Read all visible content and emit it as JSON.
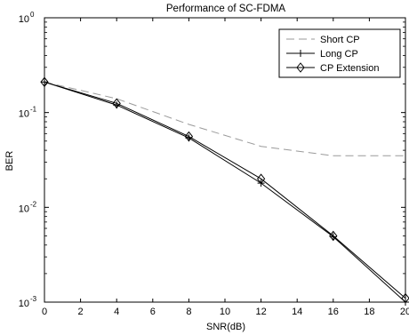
{
  "chart_data": {
    "type": "line",
    "title": "Performance of SC-FDMA",
    "xlabel": "SNR(dB)",
    "ylabel": "BER",
    "xlim": [
      0,
      20
    ],
    "ylim": [
      0.001,
      1
    ],
    "yscale": "log",
    "grid": false,
    "legend_position": "top-right",
    "x_ticks": [
      0,
      2,
      4,
      6,
      8,
      10,
      12,
      14,
      16,
      18,
      20
    ],
    "x_tick_labels": [
      "0",
      "2",
      "4",
      "6",
      "8",
      "10",
      "12",
      "14",
      "16",
      "18",
      "20"
    ],
    "y_ticks": [
      {
        "value": 1,
        "base": "10",
        "exp": "0"
      },
      {
        "value": 0.1,
        "base": "10",
        "exp": "-1"
      },
      {
        "value": 0.01,
        "base": "10",
        "exp": "-2"
      },
      {
        "value": 0.001,
        "base": "10",
        "exp": "-3"
      }
    ],
    "series": [
      {
        "name": "Short CP",
        "line_style": "dashed",
        "marker": "none",
        "color": "#9a9a9a",
        "x": [
          0,
          4,
          8,
          12,
          16,
          20
        ],
        "y": [
          0.21,
          0.14,
          0.075,
          0.044,
          0.035,
          0.035
        ]
      },
      {
        "name": "Long CP",
        "line_style": "solid",
        "marker": "plus",
        "color": "#000000",
        "x": [
          0,
          4,
          8,
          12,
          16,
          20
        ],
        "y": [
          0.21,
          0.12,
          0.054,
          0.018,
          0.0049,
          0.001
        ]
      },
      {
        "name": "CP Extension",
        "line_style": "solid",
        "marker": "diamond",
        "color": "#000000",
        "x": [
          0,
          4,
          8,
          12,
          16,
          20
        ],
        "y": [
          0.21,
          0.125,
          0.056,
          0.02,
          0.005,
          0.0011
        ]
      }
    ]
  }
}
